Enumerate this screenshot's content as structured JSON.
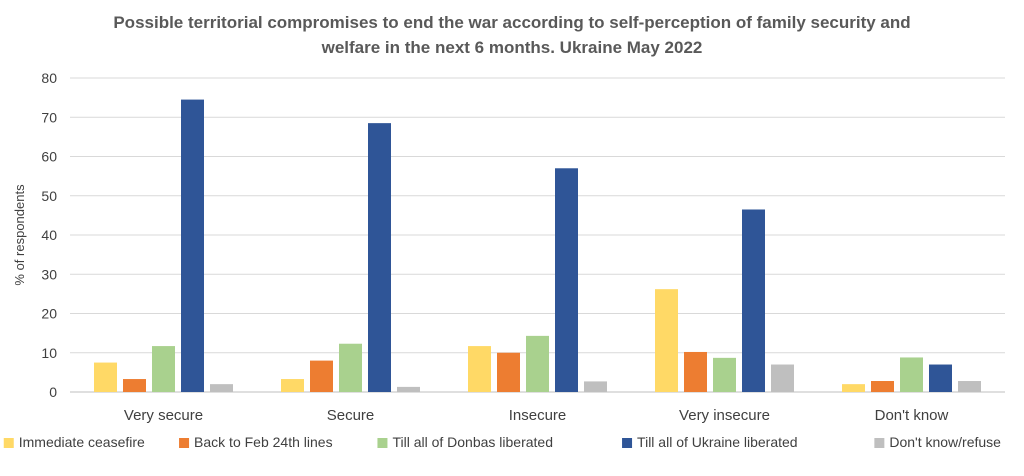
{
  "chart_data": {
    "type": "bar",
    "title": "Possible territorial compromises to end the war according to self-perception of family security and welfare in the next 6 months.    Ukraine May 2022",
    "title_lines": [
      "Possible territorial compromises to end the war according to self-perception of family security and",
      "welfare in the next 6 months.    Ukraine May 2022"
    ],
    "xlabel": "",
    "ylabel": "% of respondents",
    "ylim": [
      0,
      80
    ],
    "yticks": [
      0,
      10,
      20,
      30,
      40,
      50,
      60,
      70,
      80
    ],
    "grid": true,
    "legend_position": "bottom",
    "categories": [
      "Very secure",
      "Secure",
      "Insecure",
      "Very insecure",
      "Don't know"
    ],
    "series": [
      {
        "name": "Immediate ceasefire",
        "color": "#FFD966",
        "values": [
          7.5,
          3.3,
          11.7,
          26.2,
          2.0
        ]
      },
      {
        "name": "Back to Feb 24th lines",
        "color": "#ED7D31",
        "values": [
          3.3,
          8.0,
          10.0,
          10.2,
          2.8
        ]
      },
      {
        "name": "Till all of Donbas liberated",
        "color": "#A9D18E",
        "values": [
          11.7,
          12.3,
          14.3,
          8.7,
          8.8
        ]
      },
      {
        "name": "Till all of Ukraine liberated",
        "color": "#2F5597",
        "values": [
          74.5,
          68.5,
          57.0,
          46.5,
          7.0
        ]
      },
      {
        "name": "Don't know/refuse",
        "color": "#BFBFBF",
        "values": [
          2.0,
          1.3,
          2.7,
          7.0,
          2.8
        ]
      }
    ]
  }
}
